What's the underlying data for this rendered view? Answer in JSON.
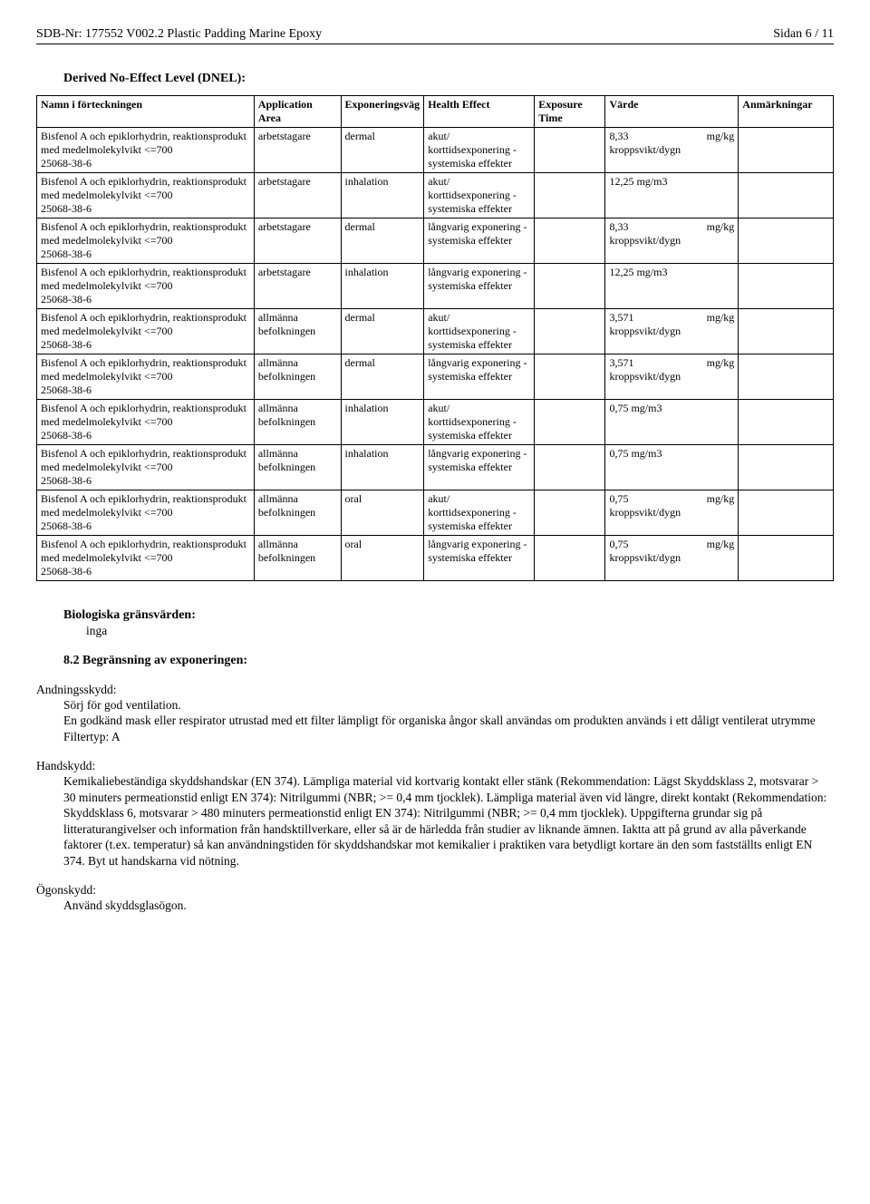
{
  "header": {
    "left": "SDB-Nr: 177552   V002.2    Plastic Padding Marine Epoxy",
    "right": "Sidan 6 / 11"
  },
  "section_title": "Derived No-Effect Level (DNEL):",
  "table": {
    "headers": {
      "name": "Namn i förteckningen",
      "area": "Application Area",
      "route": "Exponeringsväg",
      "effect": "Health Effect",
      "time": "Exposure Time",
      "value": "Värde",
      "notes": "Anmärkningar"
    },
    "substance_name": "Bisfenol A och epiklorhydrin, reaktionsprodukt med medelmolekylvikt <=700\n25068-38-6",
    "effect_acute": "akut/ korttidsexponering - systemiska effekter",
    "effect_long": "långvarig exponering - systemiska effekter",
    "rows": [
      {
        "area": "arbetstagare",
        "route": "dermal",
        "effect": "acute",
        "value_num": "8,33",
        "value_unit": "mg/kg kroppsvikt/dygn"
      },
      {
        "area": "arbetstagare",
        "route": "inhalation",
        "effect": "acute",
        "value_num": "12,25 mg/m3",
        "value_unit": ""
      },
      {
        "area": "arbetstagare",
        "route": "dermal",
        "effect": "long",
        "value_num": "8,33",
        "value_unit": "mg/kg kroppsvikt/dygn"
      },
      {
        "area": "arbetstagare",
        "route": "inhalation",
        "effect": "long",
        "value_num": "12,25 mg/m3",
        "value_unit": ""
      },
      {
        "area": "allmänna befolkningen",
        "route": "dermal",
        "effect": "acute",
        "value_num": "3,571",
        "value_unit": "mg/kg kroppsvikt/dygn"
      },
      {
        "area": "allmänna befolkningen",
        "route": "dermal",
        "effect": "long",
        "value_num": "3,571",
        "value_unit": "mg/kg kroppsvikt/dygn"
      },
      {
        "area": "allmänna befolkningen",
        "route": "inhalation",
        "effect": "acute",
        "value_num": "0,75 mg/m3",
        "value_unit": ""
      },
      {
        "area": "allmänna befolkningen",
        "route": "inhalation",
        "effect": "long",
        "value_num": "0,75 mg/m3",
        "value_unit": ""
      },
      {
        "area": "allmänna befolkningen",
        "route": "oral",
        "effect": "acute",
        "value_num": "0,75",
        "value_unit": "mg/kg kroppsvikt/dygn"
      },
      {
        "area": "allmänna befolkningen",
        "route": "oral",
        "effect": "long",
        "value_num": "0,75",
        "value_unit": "mg/kg kroppsvikt/dygn"
      }
    ]
  },
  "bio_limits": {
    "heading": "Biologiska gränsvärden:",
    "value": "inga"
  },
  "section_82": {
    "heading": "8.2 Begränsning av exponeringen:"
  },
  "respiratory": {
    "heading": "Andningsskydd:",
    "line1": "Sörj för god ventilation.",
    "line2": "En godkänd mask eller respirator utrustad med ett filter lämpligt för organiska ångor skall användas om produkten används i ett dåligt ventilerat utrymme",
    "line3": "Filtertyp: A"
  },
  "hand": {
    "heading": "Handskydd:",
    "text": "Kemikaliebeständiga skyddshandskar (EN 374). Lämpliga material vid kortvarig kontakt eller stänk (Rekommendation: Lägst Skyddsklass 2, motsvarar > 30 minuters permeationstid enligt EN 374): Nitrilgummi (NBR; >= 0,4 mm tjocklek). Lämpliga material även vid längre, direkt kontakt (Rekommendation: Skyddsklass 6, motsvarar > 480 minuters permeationstid enligt EN 374): Nitrilgummi (NBR; >= 0,4 mm tjocklek). Uppgifterna grundar sig på litteraturangivelser och information från handsktillverkare, eller så är de härledda från studier av liknande ämnen. Iaktta att på grund av alla påverkande faktorer (t.ex. temperatur) så kan användningstiden för skyddshandskar mot kemikalier i praktiken vara betydligt kortare än den som fastställts enligt EN 374. Byt ut handskarna vid nötning."
  },
  "eye": {
    "heading": "Ögonskydd:",
    "text": "Använd skyddsglasögon."
  }
}
